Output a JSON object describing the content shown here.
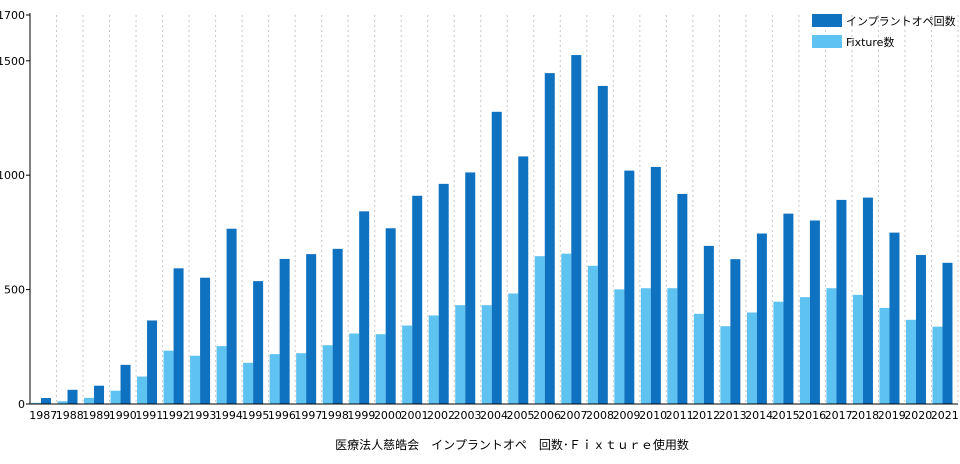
{
  "chart_data": {
    "type": "bar",
    "title": "医療法人慈皓会　インプラントオペ　回数･Ｆｉｘｔｕｒｅ使用数",
    "xlabel": "",
    "ylabel": "",
    "ylim": [
      0,
      1700
    ],
    "yticks": [
      0,
      500,
      1000,
      1500,
      1700
    ],
    "grid": "vertical-dashed",
    "legend_position": "top-right",
    "categories": [
      "1987",
      "1988",
      "1989",
      "1990",
      "1991",
      "1992",
      "1993",
      "1994",
      "1995",
      "1996",
      "1997",
      "1998",
      "1999",
      "2000",
      "2001",
      "2002",
      "2003",
      "2004",
      "2005",
      "2006",
      "2007",
      "2008",
      "2009",
      "2010",
      "2011",
      "2012",
      "2013",
      "2014",
      "2015",
      "2016",
      "2017",
      "2018",
      "2019",
      "2020",
      "2021"
    ],
    "series": [
      {
        "name": "インプラントオペ回数",
        "color": "#0f72c1",
        "values": [
          26,
          62,
          80,
          171,
          365,
          593,
          552,
          766,
          537,
          634,
          655,
          678,
          842,
          768,
          910,
          962,
          1012,
          1277,
          1082,
          1446,
          1525,
          1390,
          1020,
          1036,
          918,
          691,
          633,
          745,
          832,
          802,
          892,
          902,
          749,
          651,
          617
        ]
      },
      {
        "name": "Fixture数",
        "color": "#5fc3f2",
        "values": [
          5,
          12,
          27,
          58,
          120,
          233,
          211,
          253,
          180,
          218,
          222,
          257,
          308,
          305,
          343,
          387,
          432,
          432,
          483,
          646,
          657,
          604,
          501,
          506,
          506,
          394,
          340,
          400,
          447,
          467,
          506,
          477,
          420,
          368,
          338
        ]
      }
    ]
  }
}
